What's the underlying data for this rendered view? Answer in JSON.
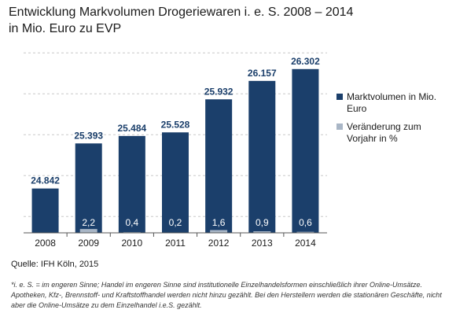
{
  "header": {
    "title_line1": "Entwicklung Markvolumen Drogeriewaren i. e. S. 2008 – 2014",
    "title_line2": "in Mio. Euro zu EVP"
  },
  "legend": [
    {
      "label": "Marktvolumen in Mio. Euro",
      "color": "#1b3f6b"
    },
    {
      "label": "Veränderung zum Vorjahr in %",
      "color": "#a9b6c6"
    }
  ],
  "source": "Quelle: IFH Köln, 2015",
  "footnote": "*i. e. S. = im engeren Sinne; Handel im engeren Sinne sind institutionelle Einzelhandelsformen einschließlich ihrer Online-Umsätze. Apotheken, Kfz-, Brennstoff- und Kraftstoffhandel werden nicht hinzu gezählt. Bei den Herstellern werden die stationären Geschäfte, nicht aber die Online-Umsätze zu dem Einzelhandel i.e.S. gezählt.",
  "colors": {
    "bar": "#1b3f6b",
    "change_bar": "#a9b6c6",
    "value_label": "#1b3f6b",
    "change_label": "#ffffff",
    "axis": "#555555"
  },
  "chart_data": {
    "type": "bar",
    "categories": [
      "2008",
      "2009",
      "2010",
      "2011",
      "2012",
      "2013",
      "2014"
    ],
    "series": [
      {
        "name": "Marktvolumen in Mio. Euro",
        "values": [
          24842,
          25393,
          25484,
          25528,
          25932,
          26157,
          26302
        ],
        "labels": [
          "24.842",
          "25.393",
          "25.484",
          "25.528",
          "25.932",
          "26.157",
          "26.302"
        ]
      },
      {
        "name": "Veränderung zum Vorjahr in %",
        "values": [
          null,
          2.2,
          0.4,
          0.2,
          1.6,
          0.9,
          0.6
        ],
        "labels": [
          "",
          "2,2",
          "0,4",
          "0,2",
          "1,6",
          "0,9",
          "0,6"
        ]
      }
    ],
    "ylim": [
      24300,
      26550
    ],
    "grid": true,
    "legend_position": "right"
  }
}
